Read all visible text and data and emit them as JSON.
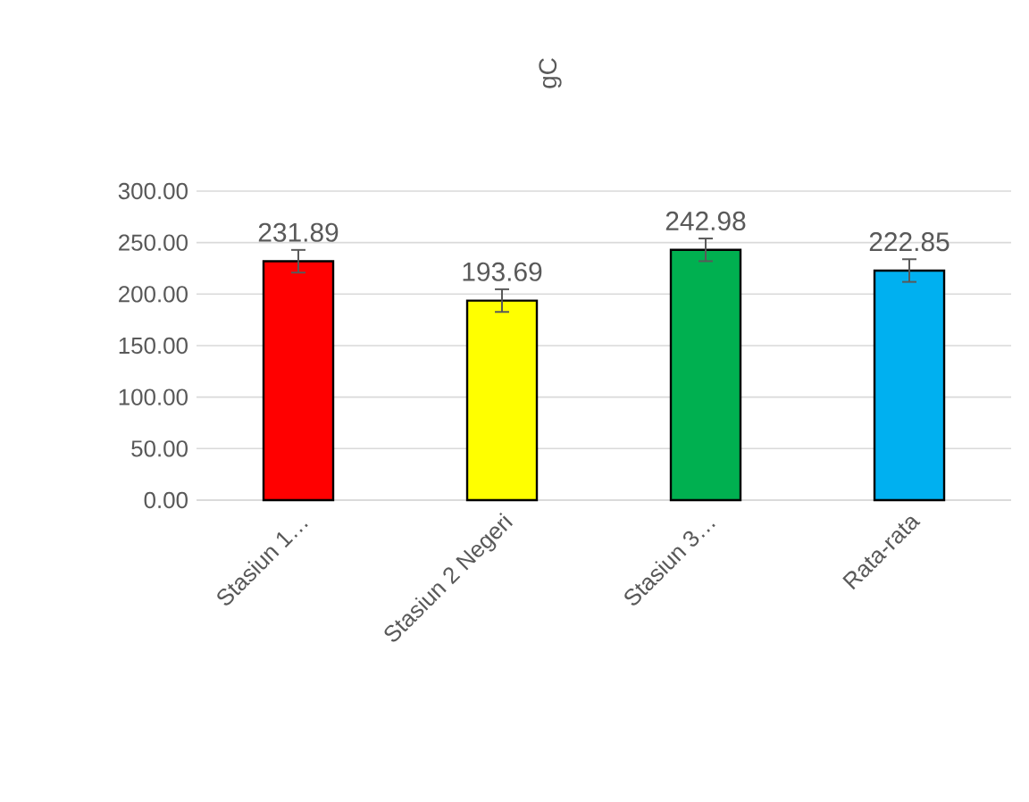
{
  "chart_data": {
    "type": "bar",
    "title": "gC",
    "categories": [
      "Stasiun 1…",
      "Stasiun 2 Negeri",
      "Stasiun 3…",
      "Rata-rata"
    ],
    "values": [
      231.89,
      193.69,
      242.98,
      222.85
    ],
    "colors": [
      "#ff0000",
      "#ffff00",
      "#00b050",
      "#00b0f0"
    ],
    "errors": [
      11,
      11,
      11,
      11
    ],
    "data_labels": true,
    "ylim": [
      0,
      300
    ],
    "yticks": [
      {
        "value": 0,
        "label": "0.00"
      },
      {
        "value": 50,
        "label": "50.00"
      },
      {
        "value": 100,
        "label": "100.00"
      },
      {
        "value": 150,
        "label": "150.00"
      },
      {
        "value": 200,
        "label": "200.00"
      },
      {
        "value": 250,
        "label": "250.00"
      },
      {
        "value": 300,
        "label": "300.00"
      }
    ],
    "grid": "y"
  }
}
